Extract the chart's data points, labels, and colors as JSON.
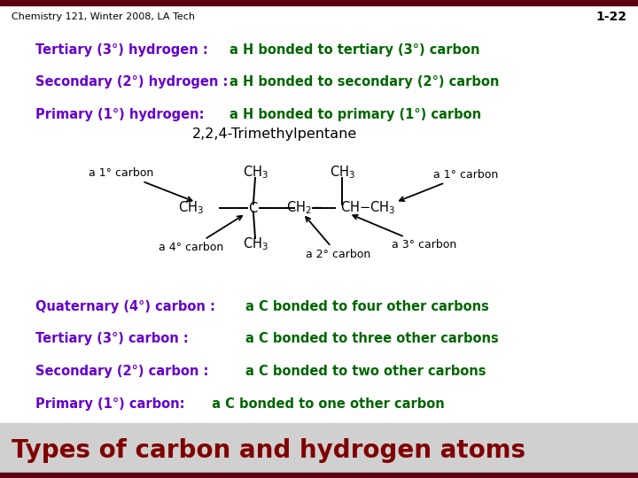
{
  "title": "Types of carbon and hydrogen atoms",
  "title_color": "#800000",
  "slide_bg": "#ffffff",
  "border_color": "#5a0010",
  "footer_left": "Chemistry 121, Winter 2008, LA Tech",
  "footer_right": "1-22",
  "label_color": "#6600cc",
  "green_color": "#006600",
  "carbon_lines": [
    {
      "label": "Primary (1°) carbon:",
      "text": " a C bonded to one other carbon",
      "inline": true
    },
    {
      "label": "Secondary (2°) carbon :",
      "text": "a C bonded to two other carbons",
      "inline": false
    },
    {
      "label": "Tertiary (3°) carbon :",
      "text": "a C bonded to three other carbons",
      "inline": false
    },
    {
      "label": "Quaternary (4°) carbon :",
      "text": "a C bonded to four other carbons",
      "inline": false
    }
  ],
  "hydrogen_lines": [
    {
      "label": "Primary (1°) hydrogen:",
      "text": "a H bonded to primary (1°) carbon"
    },
    {
      "label": "Secondary (2°) hydrogen :",
      "text": "a H bonded to secondary (2°) carbon"
    },
    {
      "label": "Tertiary (3°) hydrogen :",
      "text": "a H bonded to tertiary (3°) carbon"
    }
  ],
  "molecule_name": "2,2,4-Trimethylpentane",
  "title_bg": "#d0d0d0"
}
